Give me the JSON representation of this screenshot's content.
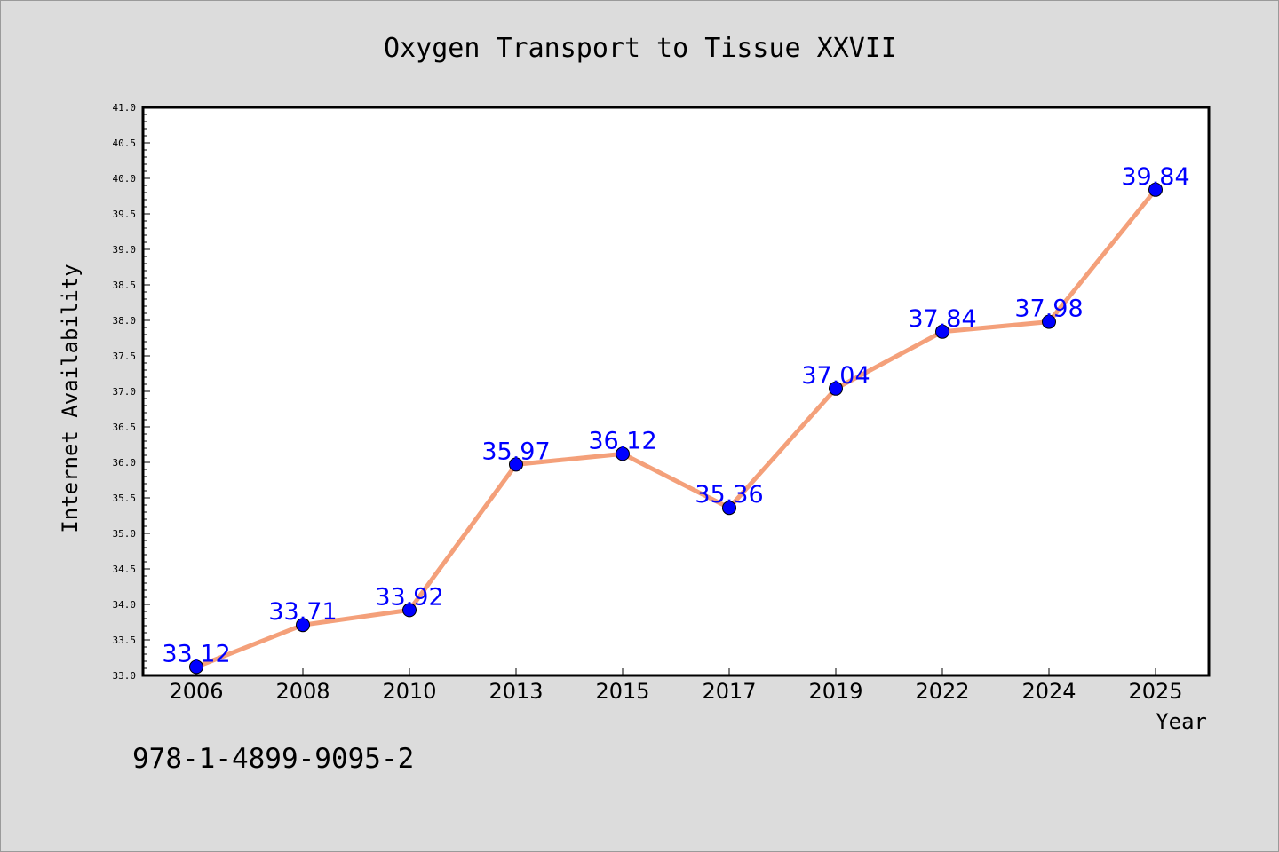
{
  "chart_data": {
    "type": "line",
    "title": "Oxygen Transport to Tissue XXVII",
    "xlabel": "Year",
    "ylabel": "Internet Availability",
    "categories": [
      "2006",
      "2008",
      "2010",
      "2013",
      "2015",
      "2017",
      "2019",
      "2022",
      "2024",
      "2025"
    ],
    "series": [
      {
        "values": [
          33.12,
          33.71,
          33.92,
          35.97,
          36.12,
          35.36,
          37.04,
          37.84,
          37.98,
          39.84
        ]
      }
    ],
    "data_labels": [
      "33.12",
      "33.71",
      "33.92",
      "35.97",
      "36.12",
      "35.36",
      "37.04",
      "37.84",
      "37.98",
      "39.84"
    ],
    "ylim": [
      33.0,
      41.0
    ],
    "y_ticks": [
      "33.0",
      "33.5",
      "34.0",
      "34.5",
      "35.0",
      "35.5",
      "36.0",
      "36.5",
      "37.0",
      "37.5",
      "38.0",
      "38.5",
      "39.0",
      "39.5",
      "40.0",
      "40.5",
      "41.0"
    ],
    "grid": false,
    "colors": {
      "line": "#f4a07a",
      "marker": "#0000ff",
      "label": "#0000ff",
      "background": "#dcdcdc",
      "plot_background": "#ffffff"
    },
    "annotation": "978-1-4899-9095-2"
  }
}
